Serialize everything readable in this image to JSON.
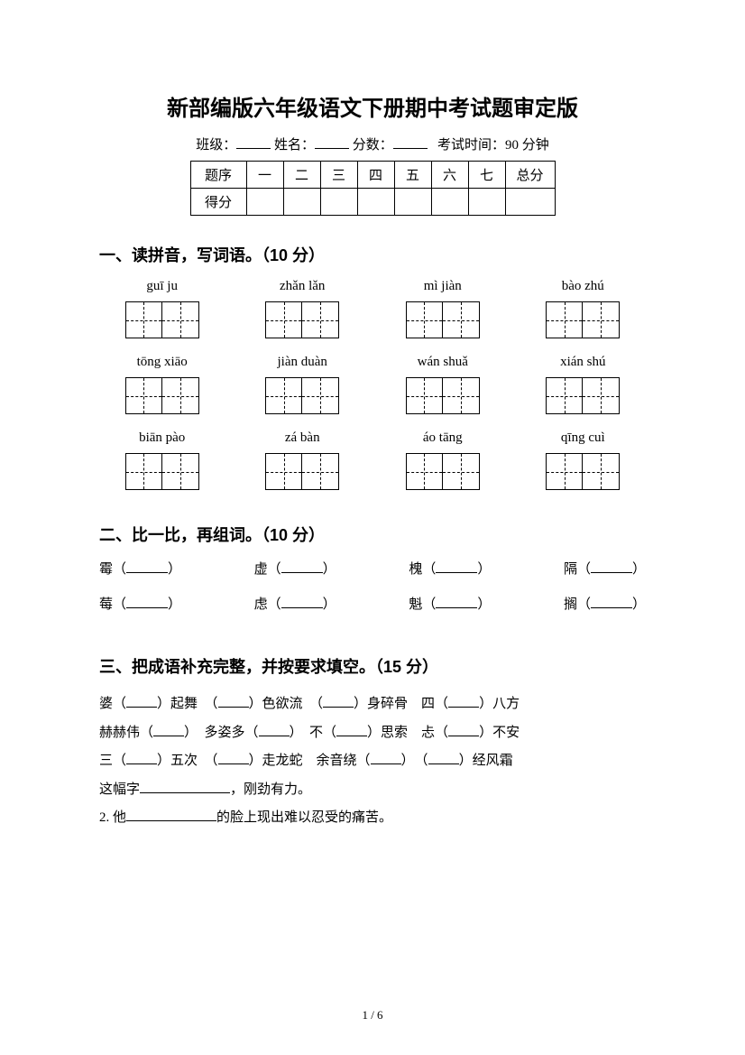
{
  "title": "新部编版六年级语文下册期中考试题审定版",
  "info": {
    "class_label": "班级：",
    "name_label": "姓名：",
    "score_label": "分数：",
    "time_label": "考试时间：90 分钟"
  },
  "score_table": {
    "row1": [
      "题序",
      "一",
      "二",
      "三",
      "四",
      "五",
      "六",
      "七",
      "总分"
    ],
    "row2_label": "得分"
  },
  "section1": {
    "heading": "一、读拼音，写词语。（10 分）",
    "items": [
      "guī   ju",
      "zhǎn lǎn",
      "mì jiàn",
      "bào zhú",
      "tōng xiāo",
      "jiàn duàn",
      "wán shuǎ",
      "xián shú",
      "biān pào",
      "zá bàn",
      "áo tāng",
      "qīng cuì"
    ]
  },
  "section2": {
    "heading": "二、比一比，再组词。（10 分）",
    "row1": [
      "霉（",
      "虚（",
      "槐（",
      "隔（"
    ],
    "row2": [
      "莓（",
      "虑（",
      "魁（",
      "搁（"
    ]
  },
  "section3": {
    "heading": "三、把成语补充完整，并按要求填空。（15 分）",
    "lines": [
      [
        {
          "t": "婆（"
        },
        {
          "b": true
        },
        {
          "t": "）起舞　（"
        },
        {
          "b": true
        },
        {
          "t": "）色欲流　（"
        },
        {
          "b": true
        },
        {
          "t": "）身碎骨　四（"
        },
        {
          "b": true
        },
        {
          "t": "）八方"
        }
      ],
      [
        {
          "t": "赫赫伟（"
        },
        {
          "b": true
        },
        {
          "t": "）　多姿多（"
        },
        {
          "b": true
        },
        {
          "t": "）　不（"
        },
        {
          "b": true
        },
        {
          "t": "）思索　忐（"
        },
        {
          "b": true
        },
        {
          "t": "）不安"
        }
      ],
      [
        {
          "t": "三（"
        },
        {
          "b": true
        },
        {
          "t": "）五次　（"
        },
        {
          "b": true
        },
        {
          "t": "）走龙蛇　余音绕（"
        },
        {
          "b": true
        },
        {
          "t": "）　（"
        },
        {
          "b": true
        },
        {
          "t": "）经风霜"
        }
      ],
      [
        {
          "t": "这幅字"
        },
        {
          "lb": true
        },
        {
          "t": "，刚劲有力。"
        }
      ],
      [
        {
          "t": "2. 他"
        },
        {
          "lb": true
        },
        {
          "t": "的脸上现出难以忍受的痛苦。"
        }
      ]
    ]
  },
  "page_num": "1 / 6"
}
